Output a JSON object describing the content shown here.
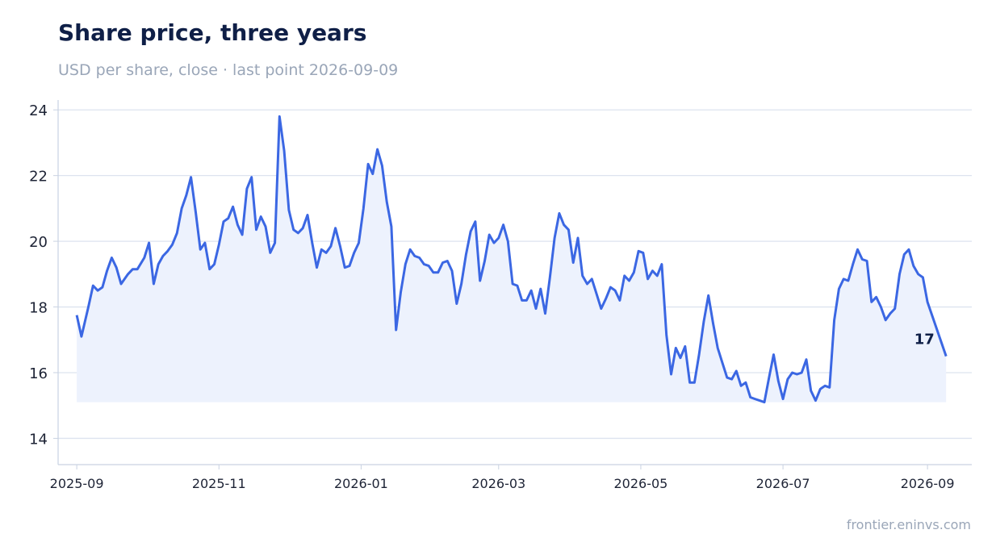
{
  "title": "Share price, three years",
  "subtitle": "USD per share, close · last point 2026-09-09",
  "source": "frontier.eninvs.com",
  "colors": {
    "line": "#3b67e3",
    "fill": "#edf2fd",
    "grid": "#dde3ef",
    "axis": "#c9d2e2",
    "title": "#0f1f47",
    "muted": "#9aa6b8"
  },
  "chart_data": {
    "type": "line",
    "title": "Share price, three years",
    "subtitle": "USD per share, close · last point 2026-09-09",
    "xlabel": "",
    "ylabel": "",
    "x_ticks": [
      "2025-09",
      "2025-11",
      "2026-01",
      "2026-03",
      "2026-05",
      "2026-07",
      "2026-09"
    ],
    "y_ticks": [
      14,
      16,
      18,
      20,
      22,
      24
    ],
    "xlim": [
      "2025-08-24",
      "2026-09-20"
    ],
    "ylim": [
      13.2,
      24.3
    ],
    "grid": true,
    "end_label": "17",
    "series": [
      {
        "points": [
          [
            "2025-09-01",
            17.75
          ],
          [
            "2025-09-03",
            17.1
          ],
          [
            "2025-09-06",
            18.0
          ],
          [
            "2025-09-08",
            18.65
          ],
          [
            "2025-09-10",
            18.5
          ],
          [
            "2025-09-12",
            18.6
          ],
          [
            "2025-09-14",
            19.1
          ],
          [
            "2025-09-16",
            19.5
          ],
          [
            "2025-09-18",
            19.2
          ],
          [
            "2025-09-20",
            18.7
          ],
          [
            "2025-09-23",
            19.0
          ],
          [
            "2025-09-25",
            19.15
          ],
          [
            "2025-09-27",
            19.15
          ],
          [
            "2025-09-30",
            19.5
          ],
          [
            "2025-10-02",
            19.95
          ],
          [
            "2025-10-04",
            18.7
          ],
          [
            "2025-10-06",
            19.3
          ],
          [
            "2025-10-08",
            19.55
          ],
          [
            "2025-10-10",
            19.7
          ],
          [
            "2025-10-12",
            19.9
          ],
          [
            "2025-10-14",
            20.25
          ],
          [
            "2025-10-16",
            21.0
          ],
          [
            "2025-10-18",
            21.4
          ],
          [
            "2025-10-20",
            21.95
          ],
          [
            "2025-10-22",
            20.9
          ],
          [
            "2025-10-24",
            19.75
          ],
          [
            "2025-10-26",
            19.95
          ],
          [
            "2025-10-28",
            19.15
          ],
          [
            "2025-10-30",
            19.3
          ],
          [
            "2025-11-01",
            19.9
          ],
          [
            "2025-11-03",
            20.6
          ],
          [
            "2025-11-05",
            20.7
          ],
          [
            "2025-11-07",
            21.05
          ],
          [
            "2025-11-09",
            20.5
          ],
          [
            "2025-11-11",
            20.2
          ],
          [
            "2025-11-13",
            21.6
          ],
          [
            "2025-11-15",
            21.95
          ],
          [
            "2025-11-17",
            20.35
          ],
          [
            "2025-11-19",
            20.75
          ],
          [
            "2025-11-21",
            20.45
          ],
          [
            "2025-11-23",
            19.65
          ],
          [
            "2025-11-25",
            19.95
          ],
          [
            "2025-11-27",
            23.8
          ],
          [
            "2025-11-29",
            22.75
          ],
          [
            "2025-12-01",
            20.95
          ],
          [
            "2025-12-03",
            20.35
          ],
          [
            "2025-12-05",
            20.25
          ],
          [
            "2025-12-07",
            20.4
          ],
          [
            "2025-12-09",
            20.8
          ],
          [
            "2025-12-11",
            19.95
          ],
          [
            "2025-12-13",
            19.2
          ],
          [
            "2025-12-15",
            19.75
          ],
          [
            "2025-12-17",
            19.65
          ],
          [
            "2025-12-19",
            19.85
          ],
          [
            "2025-12-21",
            20.4
          ],
          [
            "2025-12-23",
            19.85
          ],
          [
            "2025-12-25",
            19.2
          ],
          [
            "2025-12-27",
            19.25
          ],
          [
            "2025-12-29",
            19.65
          ],
          [
            "2025-12-31",
            19.95
          ],
          [
            "2026-01-02",
            21.0
          ],
          [
            "2026-01-04",
            22.35
          ],
          [
            "2026-01-06",
            22.05
          ],
          [
            "2026-01-08",
            22.8
          ],
          [
            "2026-01-10",
            22.3
          ],
          [
            "2026-01-12",
            21.2
          ],
          [
            "2026-01-14",
            20.45
          ],
          [
            "2026-01-16",
            17.3
          ],
          [
            "2026-01-18",
            18.45
          ],
          [
            "2026-01-20",
            19.3
          ],
          [
            "2026-01-22",
            19.75
          ],
          [
            "2026-01-24",
            19.55
          ],
          [
            "2026-01-26",
            19.5
          ],
          [
            "2026-01-28",
            19.3
          ],
          [
            "2026-01-30",
            19.25
          ],
          [
            "2026-02-01",
            19.05
          ],
          [
            "2026-02-03",
            19.05
          ],
          [
            "2026-02-05",
            19.35
          ],
          [
            "2026-02-07",
            19.4
          ],
          [
            "2026-02-09",
            19.1
          ],
          [
            "2026-02-11",
            18.1
          ],
          [
            "2026-02-13",
            18.7
          ],
          [
            "2026-02-15",
            19.6
          ],
          [
            "2026-02-17",
            20.3
          ],
          [
            "2026-02-19",
            20.6
          ],
          [
            "2026-02-21",
            18.8
          ],
          [
            "2026-02-23",
            19.4
          ],
          [
            "2026-02-25",
            20.2
          ],
          [
            "2026-02-27",
            19.95
          ],
          [
            "2026-03-01",
            20.1
          ],
          [
            "2026-03-03",
            20.5
          ],
          [
            "2026-03-05",
            20.0
          ],
          [
            "2026-03-07",
            18.7
          ],
          [
            "2026-03-09",
            18.65
          ],
          [
            "2026-03-11",
            18.2
          ],
          [
            "2026-03-13",
            18.2
          ],
          [
            "2026-03-15",
            18.5
          ],
          [
            "2026-03-17",
            17.95
          ],
          [
            "2026-03-19",
            18.55
          ],
          [
            "2026-03-21",
            17.8
          ],
          [
            "2026-03-23",
            18.9
          ],
          [
            "2026-03-25",
            20.1
          ],
          [
            "2026-03-27",
            20.85
          ],
          [
            "2026-03-29",
            20.5
          ],
          [
            "2026-03-31",
            20.35
          ],
          [
            "2026-04-02",
            19.35
          ],
          [
            "2026-04-04",
            20.1
          ],
          [
            "2026-04-06",
            18.95
          ],
          [
            "2026-04-08",
            18.7
          ],
          [
            "2026-04-10",
            18.85
          ],
          [
            "2026-04-12",
            18.4
          ],
          [
            "2026-04-14",
            17.95
          ],
          [
            "2026-04-16",
            18.25
          ],
          [
            "2026-04-18",
            18.6
          ],
          [
            "2026-04-20",
            18.5
          ],
          [
            "2026-04-22",
            18.2
          ],
          [
            "2026-04-24",
            18.95
          ],
          [
            "2026-04-26",
            18.8
          ],
          [
            "2026-04-28",
            19.05
          ],
          [
            "2026-04-30",
            19.7
          ],
          [
            "2026-05-02",
            19.65
          ],
          [
            "2026-05-04",
            18.85
          ],
          [
            "2026-05-06",
            19.1
          ],
          [
            "2026-05-08",
            18.95
          ],
          [
            "2026-05-10",
            19.3
          ],
          [
            "2026-05-12",
            17.15
          ],
          [
            "2026-05-14",
            15.95
          ],
          [
            "2026-05-16",
            16.75
          ],
          [
            "2026-05-18",
            16.45
          ],
          [
            "2026-05-20",
            16.8
          ],
          [
            "2026-05-22",
            15.7
          ],
          [
            "2026-05-24",
            15.7
          ],
          [
            "2026-05-26",
            16.55
          ],
          [
            "2026-05-28",
            17.55
          ],
          [
            "2026-05-30",
            18.35
          ],
          [
            "2026-06-01",
            17.5
          ],
          [
            "2026-06-03",
            16.75
          ],
          [
            "2026-06-05",
            16.3
          ],
          [
            "2026-06-07",
            15.85
          ],
          [
            "2026-06-09",
            15.8
          ],
          [
            "2026-06-11",
            16.05
          ],
          [
            "2026-06-13",
            15.6
          ],
          [
            "2026-06-15",
            15.7
          ],
          [
            "2026-06-17",
            15.25
          ],
          [
            "2026-06-19",
            15.2
          ],
          [
            "2026-06-21",
            15.15
          ],
          [
            "2026-06-23",
            15.1
          ],
          [
            "2026-06-25",
            15.85
          ],
          [
            "2026-06-27",
            16.55
          ],
          [
            "2026-06-29",
            15.75
          ],
          [
            "2026-07-01",
            15.2
          ],
          [
            "2026-07-03",
            15.8
          ],
          [
            "2026-07-05",
            16.0
          ],
          [
            "2026-07-07",
            15.95
          ],
          [
            "2026-07-09",
            16.0
          ],
          [
            "2026-07-11",
            16.4
          ],
          [
            "2026-07-13",
            15.45
          ],
          [
            "2026-07-15",
            15.15
          ],
          [
            "2026-07-17",
            15.5
          ],
          [
            "2026-07-19",
            15.6
          ],
          [
            "2026-07-21",
            15.55
          ],
          [
            "2026-07-23",
            17.6
          ],
          [
            "2026-07-25",
            18.55
          ],
          [
            "2026-07-27",
            18.85
          ],
          [
            "2026-07-29",
            18.8
          ],
          [
            "2026-07-31",
            19.3
          ],
          [
            "2026-08-02",
            19.75
          ],
          [
            "2026-08-04",
            19.45
          ],
          [
            "2026-08-06",
            19.4
          ],
          [
            "2026-08-08",
            18.15
          ],
          [
            "2026-08-10",
            18.3
          ],
          [
            "2026-08-12",
            18.0
          ],
          [
            "2026-08-14",
            17.6
          ],
          [
            "2026-08-16",
            17.8
          ],
          [
            "2026-08-18",
            17.95
          ],
          [
            "2026-08-20",
            19.0
          ],
          [
            "2026-08-22",
            19.6
          ],
          [
            "2026-08-24",
            19.75
          ],
          [
            "2026-08-26",
            19.25
          ],
          [
            "2026-08-28",
            19.0
          ],
          [
            "2026-08-30",
            18.9
          ],
          [
            "2026-09-01",
            18.15
          ],
          [
            "2026-09-09",
            16.5
          ]
        ]
      }
    ]
  }
}
